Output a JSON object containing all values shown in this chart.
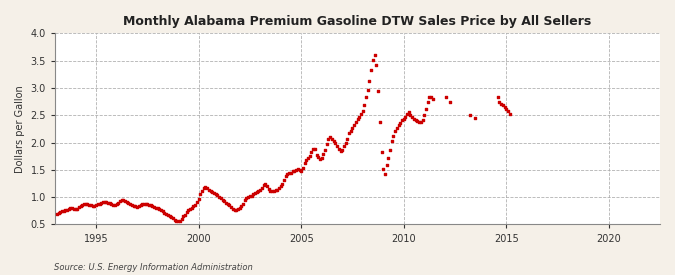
{
  "title": "Monthly Alabama Premium Gasoline DTW Sales Price by All Sellers",
  "ylabel": "Dollars per Gallon",
  "source": "Source: U.S. Energy Information Administration",
  "marker_color": "#CC0000",
  "bg_color": "#F5F0E8",
  "plot_bg_color": "#FFFFFF",
  "ylim": [
    0.5,
    4.0
  ],
  "yticks": [
    0.5,
    1.0,
    1.5,
    2.0,
    2.5,
    3.0,
    3.5,
    4.0
  ],
  "xlim_start": 1993.0,
  "xlim_end": 2022.5,
  "xticks": [
    1995,
    2000,
    2005,
    2010,
    2015,
    2020
  ],
  "data": [
    [
      1993.08,
      0.69
    ],
    [
      1993.17,
      0.71
    ],
    [
      1993.25,
      0.73
    ],
    [
      1993.33,
      0.74
    ],
    [
      1993.42,
      0.75
    ],
    [
      1993.5,
      0.76
    ],
    [
      1993.58,
      0.77
    ],
    [
      1993.67,
      0.78
    ],
    [
      1993.75,
      0.8
    ],
    [
      1993.83,
      0.8
    ],
    [
      1993.92,
      0.79
    ],
    [
      1994.0,
      0.78
    ],
    [
      1994.08,
      0.79
    ],
    [
      1994.17,
      0.82
    ],
    [
      1994.25,
      0.84
    ],
    [
      1994.33,
      0.85
    ],
    [
      1994.42,
      0.87
    ],
    [
      1994.5,
      0.88
    ],
    [
      1994.58,
      0.87
    ],
    [
      1994.67,
      0.86
    ],
    [
      1994.75,
      0.85
    ],
    [
      1994.83,
      0.84
    ],
    [
      1994.92,
      0.84
    ],
    [
      1995.0,
      0.85
    ],
    [
      1995.08,
      0.87
    ],
    [
      1995.17,
      0.88
    ],
    [
      1995.25,
      0.9
    ],
    [
      1995.33,
      0.91
    ],
    [
      1995.42,
      0.92
    ],
    [
      1995.5,
      0.91
    ],
    [
      1995.58,
      0.9
    ],
    [
      1995.67,
      0.89
    ],
    [
      1995.75,
      0.87
    ],
    [
      1995.83,
      0.86
    ],
    [
      1995.92,
      0.85
    ],
    [
      1996.0,
      0.87
    ],
    [
      1996.08,
      0.9
    ],
    [
      1996.17,
      0.93
    ],
    [
      1996.25,
      0.95
    ],
    [
      1996.33,
      0.95
    ],
    [
      1996.42,
      0.93
    ],
    [
      1996.5,
      0.91
    ],
    [
      1996.58,
      0.89
    ],
    [
      1996.67,
      0.87
    ],
    [
      1996.75,
      0.85
    ],
    [
      1996.83,
      0.84
    ],
    [
      1996.92,
      0.83
    ],
    [
      1997.0,
      0.82
    ],
    [
      1997.08,
      0.83
    ],
    [
      1997.17,
      0.85
    ],
    [
      1997.25,
      0.87
    ],
    [
      1997.33,
      0.87
    ],
    [
      1997.42,
      0.88
    ],
    [
      1997.5,
      0.87
    ],
    [
      1997.58,
      0.86
    ],
    [
      1997.67,
      0.85
    ],
    [
      1997.75,
      0.83
    ],
    [
      1997.83,
      0.82
    ],
    [
      1997.92,
      0.81
    ],
    [
      1998.0,
      0.8
    ],
    [
      1998.08,
      0.78
    ],
    [
      1998.17,
      0.76
    ],
    [
      1998.25,
      0.74
    ],
    [
      1998.33,
      0.71
    ],
    [
      1998.42,
      0.69
    ],
    [
      1998.5,
      0.67
    ],
    [
      1998.58,
      0.65
    ],
    [
      1998.67,
      0.63
    ],
    [
      1998.75,
      0.61
    ],
    [
      1998.83,
      0.59
    ],
    [
      1998.92,
      0.57
    ],
    [
      1999.0,
      0.56
    ],
    [
      1999.08,
      0.57
    ],
    [
      1999.17,
      0.6
    ],
    [
      1999.25,
      0.65
    ],
    [
      1999.33,
      0.68
    ],
    [
      1999.42,
      0.72
    ],
    [
      1999.5,
      0.76
    ],
    [
      1999.58,
      0.78
    ],
    [
      1999.67,
      0.8
    ],
    [
      1999.75,
      0.83
    ],
    [
      1999.83,
      0.86
    ],
    [
      1999.92,
      0.91
    ],
    [
      2000.0,
      0.97
    ],
    [
      2000.08,
      1.05
    ],
    [
      2000.17,
      1.12
    ],
    [
      2000.25,
      1.17
    ],
    [
      2000.33,
      1.18
    ],
    [
      2000.42,
      1.17
    ],
    [
      2000.5,
      1.14
    ],
    [
      2000.58,
      1.12
    ],
    [
      2000.67,
      1.1
    ],
    [
      2000.75,
      1.08
    ],
    [
      2000.83,
      1.06
    ],
    [
      2000.92,
      1.04
    ],
    [
      2001.0,
      1.01
    ],
    [
      2001.08,
      0.98
    ],
    [
      2001.17,
      0.95
    ],
    [
      2001.25,
      0.93
    ],
    [
      2001.33,
      0.9
    ],
    [
      2001.42,
      0.88
    ],
    [
      2001.5,
      0.85
    ],
    [
      2001.58,
      0.82
    ],
    [
      2001.67,
      0.79
    ],
    [
      2001.75,
      0.77
    ],
    [
      2001.83,
      0.76
    ],
    [
      2001.92,
      0.78
    ],
    [
      2002.0,
      0.8
    ],
    [
      2002.08,
      0.83
    ],
    [
      2002.17,
      0.88
    ],
    [
      2002.25,
      0.94
    ],
    [
      2002.33,
      0.98
    ],
    [
      2002.42,
      1.01
    ],
    [
      2002.5,
      1.02
    ],
    [
      2002.58,
      1.03
    ],
    [
      2002.67,
      1.05
    ],
    [
      2002.75,
      1.07
    ],
    [
      2002.83,
      1.09
    ],
    [
      2002.92,
      1.12
    ],
    [
      2003.0,
      1.14
    ],
    [
      2003.08,
      1.17
    ],
    [
      2003.17,
      1.22
    ],
    [
      2003.25,
      1.24
    ],
    [
      2003.33,
      1.2
    ],
    [
      2003.42,
      1.15
    ],
    [
      2003.5,
      1.12
    ],
    [
      2003.58,
      1.11
    ],
    [
      2003.67,
      1.12
    ],
    [
      2003.75,
      1.13
    ],
    [
      2003.83,
      1.14
    ],
    [
      2003.92,
      1.16
    ],
    [
      2004.0,
      1.2
    ],
    [
      2004.08,
      1.25
    ],
    [
      2004.17,
      1.32
    ],
    [
      2004.25,
      1.38
    ],
    [
      2004.33,
      1.42
    ],
    [
      2004.42,
      1.44
    ],
    [
      2004.5,
      1.45
    ],
    [
      2004.58,
      1.47
    ],
    [
      2004.67,
      1.48
    ],
    [
      2004.75,
      1.5
    ],
    [
      2004.83,
      1.52
    ],
    [
      2004.92,
      1.49
    ],
    [
      2005.0,
      1.48
    ],
    [
      2005.08,
      1.53
    ],
    [
      2005.17,
      1.62
    ],
    [
      2005.25,
      1.68
    ],
    [
      2005.33,
      1.72
    ],
    [
      2005.42,
      1.75
    ],
    [
      2005.5,
      1.82
    ],
    [
      2005.58,
      1.88
    ],
    [
      2005.67,
      1.88
    ],
    [
      2005.75,
      1.78
    ],
    [
      2005.83,
      1.73
    ],
    [
      2005.92,
      1.69
    ],
    [
      2006.0,
      1.72
    ],
    [
      2006.08,
      1.79
    ],
    [
      2006.17,
      1.87
    ],
    [
      2006.25,
      1.97
    ],
    [
      2006.33,
      2.06
    ],
    [
      2006.42,
      2.1
    ],
    [
      2006.5,
      2.07
    ],
    [
      2006.58,
      2.03
    ],
    [
      2006.67,
      1.99
    ],
    [
      2006.75,
      1.94
    ],
    [
      2006.83,
      1.89
    ],
    [
      2006.92,
      1.84
    ],
    [
      2007.0,
      1.87
    ],
    [
      2007.08,
      1.93
    ],
    [
      2007.17,
      1.99
    ],
    [
      2007.25,
      2.07
    ],
    [
      2007.33,
      2.17
    ],
    [
      2007.42,
      2.22
    ],
    [
      2007.5,
      2.27
    ],
    [
      2007.58,
      2.32
    ],
    [
      2007.67,
      2.37
    ],
    [
      2007.75,
      2.43
    ],
    [
      2007.83,
      2.47
    ],
    [
      2007.92,
      2.53
    ],
    [
      2008.0,
      2.58
    ],
    [
      2008.08,
      2.68
    ],
    [
      2008.17,
      2.84
    ],
    [
      2008.25,
      2.97
    ],
    [
      2008.33,
      3.12
    ],
    [
      2008.42,
      3.32
    ],
    [
      2008.5,
      3.52
    ],
    [
      2008.58,
      3.61
    ],
    [
      2008.67,
      3.42
    ],
    [
      2008.75,
      2.95
    ],
    [
      2008.83,
      2.38
    ],
    [
      2008.92,
      1.82
    ],
    [
      2009.0,
      1.52
    ],
    [
      2009.08,
      1.42
    ],
    [
      2009.17,
      1.58
    ],
    [
      2009.25,
      1.72
    ],
    [
      2009.33,
      1.87
    ],
    [
      2009.42,
      2.02
    ],
    [
      2009.5,
      2.12
    ],
    [
      2009.58,
      2.22
    ],
    [
      2009.67,
      2.27
    ],
    [
      2009.75,
      2.32
    ],
    [
      2009.83,
      2.35
    ],
    [
      2009.92,
      2.42
    ],
    [
      2010.0,
      2.44
    ],
    [
      2010.08,
      2.47
    ],
    [
      2010.17,
      2.52
    ],
    [
      2010.25,
      2.56
    ],
    [
      2010.33,
      2.5
    ],
    [
      2010.42,
      2.47
    ],
    [
      2010.5,
      2.43
    ],
    [
      2010.58,
      2.42
    ],
    [
      2010.67,
      2.4
    ],
    [
      2010.75,
      2.37
    ],
    [
      2010.83,
      2.38
    ],
    [
      2010.92,
      2.41
    ],
    [
      2011.0,
      2.51
    ],
    [
      2011.08,
      2.62
    ],
    [
      2011.17,
      2.74
    ],
    [
      2011.25,
      2.84
    ],
    [
      2011.33,
      2.83
    ],
    [
      2011.42,
      2.79
    ],
    [
      2012.08,
      2.83
    ],
    [
      2012.25,
      2.75
    ],
    [
      2013.25,
      2.5
    ],
    [
      2013.5,
      2.45
    ],
    [
      2014.58,
      2.83
    ],
    [
      2014.67,
      2.75
    ],
    [
      2014.75,
      2.71
    ],
    [
      2014.83,
      2.68
    ],
    [
      2014.92,
      2.65
    ],
    [
      2015.0,
      2.62
    ],
    [
      2015.08,
      2.57
    ],
    [
      2015.17,
      2.52
    ]
  ]
}
